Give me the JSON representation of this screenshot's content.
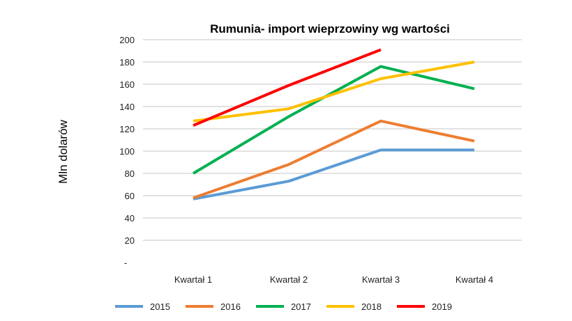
{
  "chart_data": {
    "type": "line",
    "title": "Rumunia- import wieprzowiny wg wartości",
    "xlabel": "",
    "ylabel": "Mln dolarów",
    "categories": [
      "Kwartał 1",
      "Kwartał 2",
      "Kwartał 3",
      "Kwartał 4"
    ],
    "ylim": [
      0,
      200
    ],
    "yticks": [
      "-",
      "20",
      "40",
      "60",
      "80",
      "100",
      "120",
      "140",
      "160",
      "180",
      "200"
    ],
    "grid": true,
    "legend": "bottom",
    "series": [
      {
        "name": "2015",
        "color": "#5B9BD5",
        "values": [
          57,
          73,
          101,
          101
        ]
      },
      {
        "name": "2016",
        "color": "#ED7D31",
        "values": [
          58,
          88,
          127,
          109
        ]
      },
      {
        "name": "2017",
        "color": "#00B050",
        "values": [
          80,
          131,
          176,
          156
        ]
      },
      {
        "name": "2018",
        "color": "#FFC000",
        "values": [
          127,
          138,
          165,
          180
        ]
      },
      {
        "name": "2019",
        "color": "#FF0000",
        "values": [
          123,
          159,
          191,
          null
        ]
      }
    ]
  }
}
